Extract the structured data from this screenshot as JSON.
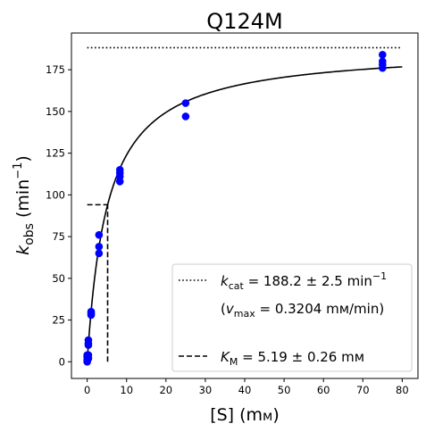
{
  "chart_data": {
    "type": "scatter",
    "title": "Q124M",
    "xlabel": "[S] (mM)",
    "ylabel": "k_obs (min^-1)",
    "xlim": [
      -4,
      84
    ],
    "ylim": [
      -10,
      197
    ],
    "xticks": [
      0,
      10,
      20,
      30,
      40,
      50,
      60,
      70,
      80
    ],
    "yticks": [
      0,
      25,
      50,
      75,
      100,
      125,
      150,
      175
    ],
    "grid": false,
    "legend_position": "lower-right",
    "point_color": "#0000ff",
    "series": [
      {
        "name": "observed",
        "x": [
          0,
          0,
          0,
          0,
          0.3,
          0.3,
          0.3,
          0.3,
          0.3,
          1,
          1,
          1,
          3,
          3,
          3,
          8.3,
          8.3,
          8.3,
          8.3,
          25,
          25,
          75,
          75,
          75,
          75
        ],
        "y": [
          0,
          1,
          3,
          4,
          10,
          11,
          13,
          4,
          2,
          28,
          29,
          30,
          65,
          69,
          76,
          108,
          111,
          113,
          115,
          155,
          147,
          176,
          178,
          180,
          184
        ]
      }
    ],
    "fit": {
      "kcat": 188.2,
      "KM": 5.19,
      "x_range": [
        0,
        80
      ]
    },
    "legend": {
      "kcat_value": "188.2 ± 2.5 min",
      "kcat_exp": "−1",
      "vmax_value": " = 0.3204 mм/min)",
      "km_value": " = 5.19 ± 0.26 mм"
    },
    "km_marker": {
      "x": 5.19,
      "y": 94.1
    }
  }
}
